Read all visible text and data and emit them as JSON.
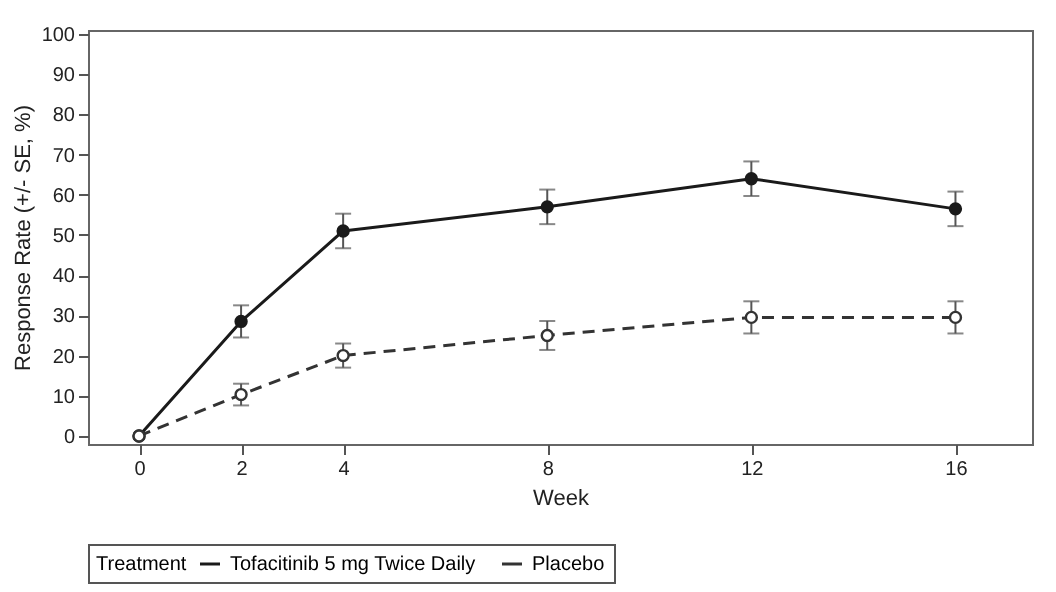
{
  "chart_data": {
    "type": "line",
    "xlabel": "Week",
    "ylabel": "Response Rate (+/- SE, %)",
    "legend_title": "Treatment",
    "x": [
      0,
      2,
      4,
      8,
      12,
      16
    ],
    "series": [
      {
        "name": "Tofacitinib 5 mg Twice Daily",
        "color": "#1a1a1a",
        "line_style": "solid",
        "values": [
          0,
          28.5,
          51,
          57,
          64,
          56.5
        ],
        "errors": [
          null,
          4,
          4.3,
          4.3,
          4.3,
          4.3
        ]
      },
      {
        "name": "Placebo",
        "color": "#333333",
        "line_style": "dashed",
        "values": [
          0,
          10.3,
          20,
          25,
          29.5,
          29.5
        ],
        "errors": [
          null,
          2.7,
          3,
          3.6,
          4,
          4
        ]
      }
    ],
    "xlim": [
      -1,
      17.5
    ],
    "xticks": [
      0,
      2,
      4,
      8,
      12,
      16
    ],
    "ylim": [
      -2,
      101
    ],
    "yticks": [
      0,
      10,
      20,
      30,
      40,
      50,
      60,
      70,
      80,
      90,
      100
    ],
    "grid": false,
    "legend": "bottom",
    "marker": "circle"
  }
}
